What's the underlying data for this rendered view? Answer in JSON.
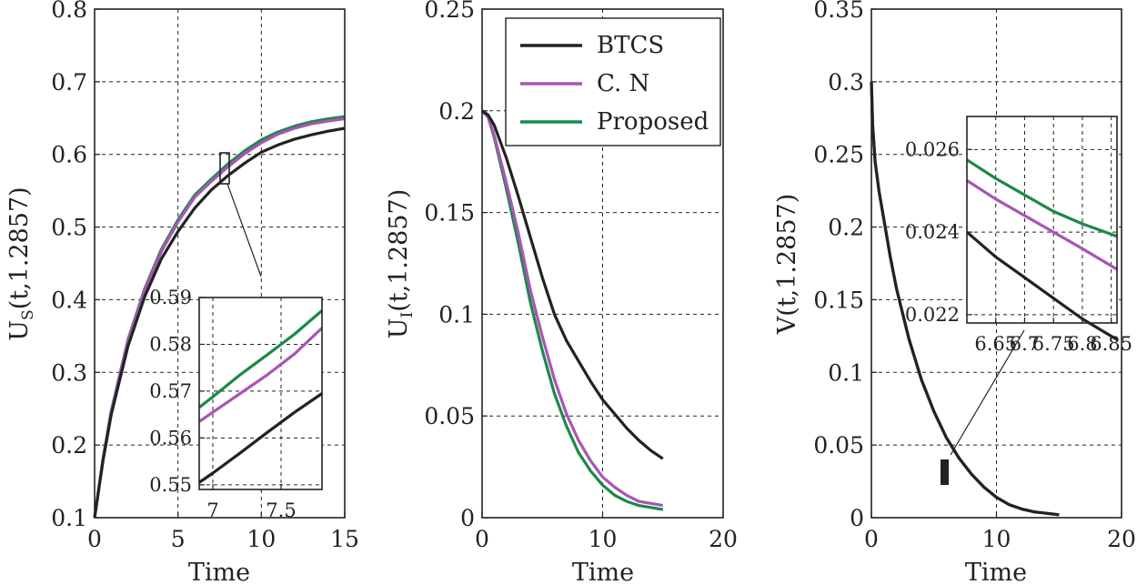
{
  "colors": {
    "btcs": "#222222",
    "cn": "#a855b5",
    "proposed": "#1b8a48"
  },
  "chart_data": [
    {
      "id": "us",
      "type": "line",
      "xlabel": "Time",
      "ylabel_main": "U",
      "ylabel_sub": "S",
      "ylabel_rest": "(t,1.2857)",
      "xlim": [
        0,
        15
      ],
      "ylim": [
        0.1,
        0.8
      ],
      "xticks": [
        "0",
        "5",
        "10",
        "15"
      ],
      "yticks": [
        "0.1",
        "0.2",
        "0.3",
        "0.4",
        "0.5",
        "0.6",
        "0.7",
        "0.8"
      ],
      "x": [
        0,
        0.5,
        1,
        2,
        3,
        4,
        5,
        6,
        7,
        8,
        9,
        10,
        11,
        12,
        13,
        14,
        15
      ],
      "series": [
        {
          "name": "BTCS",
          "values": [
            0.1,
            0.178,
            0.242,
            0.336,
            0.404,
            0.456,
            0.494,
            0.526,
            0.551,
            0.571,
            0.588,
            0.603,
            0.613,
            0.621,
            0.627,
            0.632,
            0.636
          ]
        },
        {
          "name": "C. N",
          "values": [
            0.1,
            0.18,
            0.246,
            0.343,
            0.413,
            0.466,
            0.507,
            0.541,
            0.563,
            0.583,
            0.601,
            0.616,
            0.628,
            0.636,
            0.642,
            0.646,
            0.649
          ]
        },
        {
          "name": "Proposed",
          "values": [
            0.1,
            0.181,
            0.247,
            0.345,
            0.415,
            0.469,
            0.51,
            0.544,
            0.566,
            0.587,
            0.605,
            0.62,
            0.631,
            0.639,
            0.645,
            0.649,
            0.652
          ]
        }
      ],
      "inset": {
        "xlim": [
          6.9,
          7.8
        ],
        "ylim": [
          0.549,
          0.59
        ],
        "xticks": [
          "7",
          "7.5"
        ],
        "yticks": [
          "0.55",
          "0.56",
          "0.57",
          "0.58",
          "0.59"
        ],
        "x": [
          6.9,
          7.0,
          7.2,
          7.4,
          7.6,
          7.8
        ],
        "series": [
          {
            "name": "BTCS",
            "values": [
              0.5505,
              0.5525,
              0.5568,
              0.5612,
              0.5655,
              0.5695
            ]
          },
          {
            "name": "C. N",
            "values": [
              0.5635,
              0.5655,
              0.5695,
              0.5735,
              0.578,
              0.5835
            ]
          },
          {
            "name": "Proposed",
            "values": [
              0.5665,
              0.5688,
              0.5735,
              0.5778,
              0.5822,
              0.5872
            ]
          }
        ]
      }
    },
    {
      "id": "ui",
      "type": "line",
      "xlabel": "Time",
      "ylabel_main": "U",
      "ylabel_sub": "I",
      "ylabel_rest": "(t,1.2857)",
      "xlim": [
        0,
        20
      ],
      "ylim": [
        0,
        0.25
      ],
      "xticks": [
        "0",
        "10",
        "20"
      ],
      "yticks": [
        "0",
        "0.05",
        "0.1",
        "0.15",
        "0.2",
        "0.25"
      ],
      "legend": [
        "BTCS",
        "C. N",
        "Proposed"
      ],
      "legend_position": "top-right",
      "x": [
        0,
        0.5,
        1,
        2,
        3,
        4,
        5,
        6,
        7,
        8,
        9,
        10,
        11,
        12,
        13,
        14,
        15
      ],
      "series": [
        {
          "name": "BTCS",
          "values": [
            0.2,
            0.198,
            0.193,
            0.177,
            0.158,
            0.138,
            0.118,
            0.1,
            0.087,
            0.077,
            0.067,
            0.058,
            0.051,
            0.044,
            0.038,
            0.033,
            0.029
          ]
        },
        {
          "name": "C. N",
          "values": [
            0.2,
            0.197,
            0.188,
            0.165,
            0.14,
            0.112,
            0.089,
            0.068,
            0.051,
            0.038,
            0.028,
            0.02,
            0.015,
            0.011,
            0.008,
            0.007,
            0.006
          ]
        },
        {
          "name": "Proposed",
          "values": [
            0.2,
            0.197,
            0.187,
            0.162,
            0.135,
            0.106,
            0.082,
            0.061,
            0.045,
            0.032,
            0.023,
            0.016,
            0.011,
            0.008,
            0.006,
            0.005,
            0.004
          ]
        }
      ]
    },
    {
      "id": "v",
      "type": "line",
      "xlabel": "Time",
      "ylabel_main": "V(t,1.2857)",
      "xlim": [
        0,
        20
      ],
      "ylim": [
        0,
        0.35
      ],
      "xticks": [
        "0",
        "10",
        "20"
      ],
      "yticks": [
        "0",
        "0.05",
        "0.1",
        "0.15",
        "0.2",
        "0.25",
        "0.3",
        "0.35"
      ],
      "x": [
        0,
        0.1,
        0.3,
        0.6,
        1,
        1.5,
        2,
        3,
        4,
        5,
        6,
        7,
        8,
        9,
        10,
        11,
        12,
        13,
        14,
        15
      ],
      "series": [
        {
          "name": "BTCS",
          "values": [
            0.3,
            0.27,
            0.245,
            0.225,
            0.205,
            0.18,
            0.158,
            0.123,
            0.095,
            0.073,
            0.055,
            0.041,
            0.03,
            0.021,
            0.014,
            0.009,
            0.006,
            0.004,
            0.003,
            0.002
          ]
        },
        {
          "name": "C. N",
          "values": [
            0.3,
            0.27,
            0.245,
            0.225,
            0.205,
            0.18,
            0.158,
            0.123,
            0.095,
            0.073,
            0.055,
            0.041,
            0.03,
            0.021,
            0.014,
            0.009,
            0.006,
            0.004,
            0.003,
            0.002
          ]
        },
        {
          "name": "Proposed",
          "values": [
            0.3,
            0.27,
            0.245,
            0.225,
            0.205,
            0.18,
            0.158,
            0.123,
            0.095,
            0.073,
            0.055,
            0.041,
            0.03,
            0.021,
            0.014,
            0.009,
            0.006,
            0.004,
            0.003,
            0.002
          ]
        }
      ],
      "inset": {
        "xlim": [
          6.6,
          6.86
        ],
        "ylim": [
          0.0218,
          0.0268
        ],
        "xticks": [
          "6.65",
          "6.7",
          "6.75",
          "6.8",
          "6.85"
        ],
        "yticks": [
          "0.022",
          "0.024",
          "0.026"
        ],
        "x": [
          6.6,
          6.65,
          6.7,
          6.75,
          6.8,
          6.86
        ],
        "series": [
          {
            "name": "BTCS",
            "values": [
              0.024,
              0.0234,
              0.0229,
              0.0224,
              0.0219,
              0.0214
            ]
          },
          {
            "name": "C. N",
            "values": [
              0.02525,
              0.0248,
              0.0244,
              0.024,
              0.0236,
              0.0231
            ]
          },
          {
            "name": "Proposed",
            "values": [
              0.02575,
              0.0253,
              0.0249,
              0.0245,
              0.0242,
              0.0239
            ]
          }
        ]
      }
    }
  ]
}
